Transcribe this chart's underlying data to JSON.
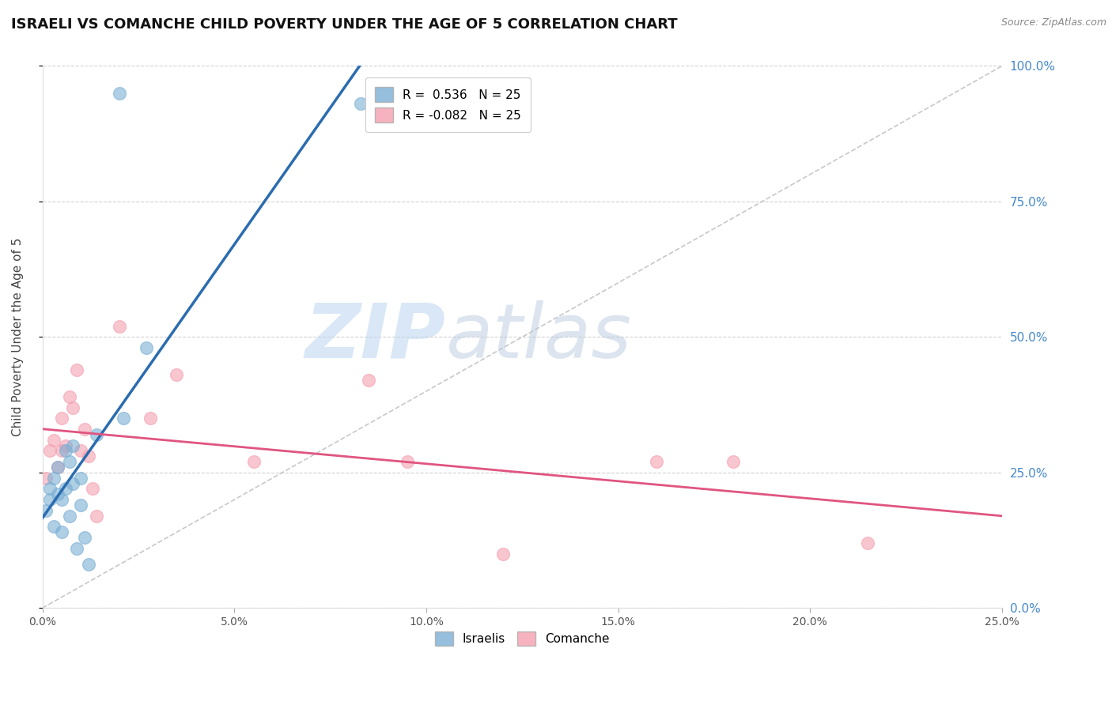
{
  "title": "ISRAELI VS COMANCHE CHILD POVERTY UNDER THE AGE OF 5 CORRELATION CHART",
  "source": "Source: ZipAtlas.com",
  "ylabel": "Child Poverty Under the Age of 5",
  "xmin": 0.0,
  "xmax": 0.25,
  "ymin": 0.0,
  "ymax": 1.0,
  "xticks": [
    0.0,
    0.05,
    0.1,
    0.15,
    0.2,
    0.25
  ],
  "yticks": [
    0.0,
    0.25,
    0.5,
    0.75,
    1.0
  ],
  "legend_r_israelis": "R =  0.536",
  "legend_n_israelis": "N = 25",
  "legend_r_comanche": "R = -0.082",
  "legend_n_comanche": "N = 25",
  "israelis_color": "#7BAFD4",
  "comanche_color": "#F4A0B0",
  "blue_line_color": "#2B6CB0",
  "pink_line_color": "#E05580",
  "ref_line_color": "#C8C8C8",
  "israelis_x": [
    0.001,
    0.002,
    0.002,
    0.003,
    0.003,
    0.004,
    0.004,
    0.005,
    0.005,
    0.006,
    0.006,
    0.007,
    0.007,
    0.008,
    0.008,
    0.009,
    0.01,
    0.01,
    0.011,
    0.012,
    0.014,
    0.021,
    0.027,
    0.02,
    0.083
  ],
  "israelis_y": [
    0.18,
    0.22,
    0.2,
    0.24,
    0.15,
    0.21,
    0.26,
    0.2,
    0.14,
    0.22,
    0.29,
    0.27,
    0.17,
    0.23,
    0.3,
    0.11,
    0.19,
    0.24,
    0.13,
    0.08,
    0.32,
    0.35,
    0.48,
    0.95,
    0.93
  ],
  "comanche_x": [
    0.001,
    0.002,
    0.003,
    0.004,
    0.005,
    0.005,
    0.006,
    0.007,
    0.008,
    0.009,
    0.01,
    0.011,
    0.012,
    0.013,
    0.014,
    0.02,
    0.028,
    0.035,
    0.055,
    0.085,
    0.095,
    0.12,
    0.16,
    0.18,
    0.215
  ],
  "comanche_y": [
    0.24,
    0.29,
    0.31,
    0.26,
    0.29,
    0.35,
    0.3,
    0.39,
    0.37,
    0.44,
    0.29,
    0.33,
    0.28,
    0.22,
    0.17,
    0.52,
    0.35,
    0.43,
    0.27,
    0.42,
    0.27,
    0.1,
    0.27,
    0.27,
    0.12
  ],
  "marker_size": 130,
  "bg_color": "#FFFFFF",
  "watermark_zip_color": "#CADFF5",
  "watermark_atlas_color": "#BFD4E8"
}
